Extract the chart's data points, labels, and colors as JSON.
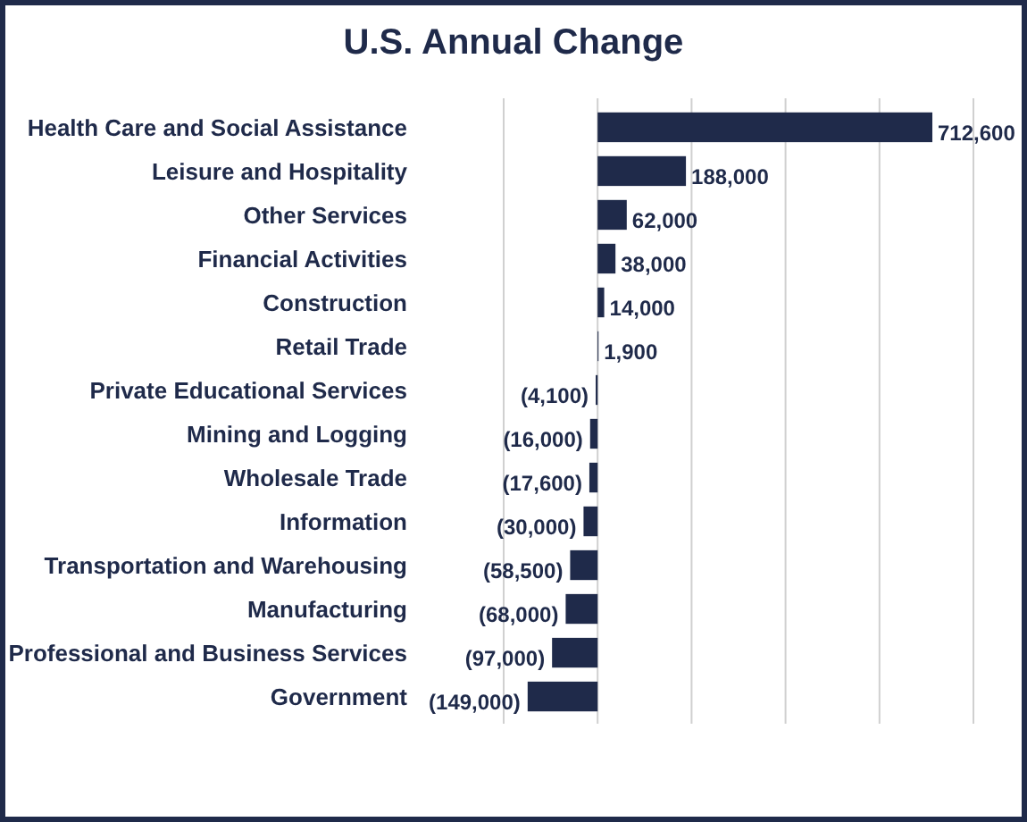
{
  "chart_data": {
    "type": "bar",
    "title": "U.S. Annual Change",
    "orientation": "horizontal",
    "categories": [
      "Health Care and Social Assistance",
      "Leisure and Hospitality",
      "Other Services",
      "Financial Activities",
      "Construction",
      "Retail Trade",
      "Private Educational Services",
      "Mining and Logging",
      "Wholesale Trade",
      "Information",
      "Transportation and Warehousing",
      "Manufacturing",
      "Professional and Business Services",
      "Government"
    ],
    "values": [
      712600,
      188000,
      62000,
      38000,
      14000,
      1900,
      -4100,
      -16000,
      -17600,
      -30000,
      -58500,
      -68000,
      -97000,
      -149000
    ],
    "value_labels": [
      "712,600",
      "188,000",
      "62,000",
      "38,000",
      "14,000",
      "1,900",
      "(4,100)",
      "(16,000)",
      "(17,600)",
      "(30,000)",
      "(58,500)",
      "(68,000)",
      "(97,000)",
      "(149,000)"
    ],
    "color": "#1f2a4a",
    "xlim": [
      -200000,
      800000
    ],
    "xticks": [
      {
        "value": -200000,
        "label": null
      },
      {
        "value": 0,
        "label": null
      },
      {
        "value": 200000,
        "label": null
      },
      {
        "value": 400000,
        "label": null
      },
      {
        "value": 600000,
        "label": null
      },
      {
        "value": 800000,
        "label": null
      }
    ],
    "grid": "x",
    "tick_labels": "y"
  }
}
